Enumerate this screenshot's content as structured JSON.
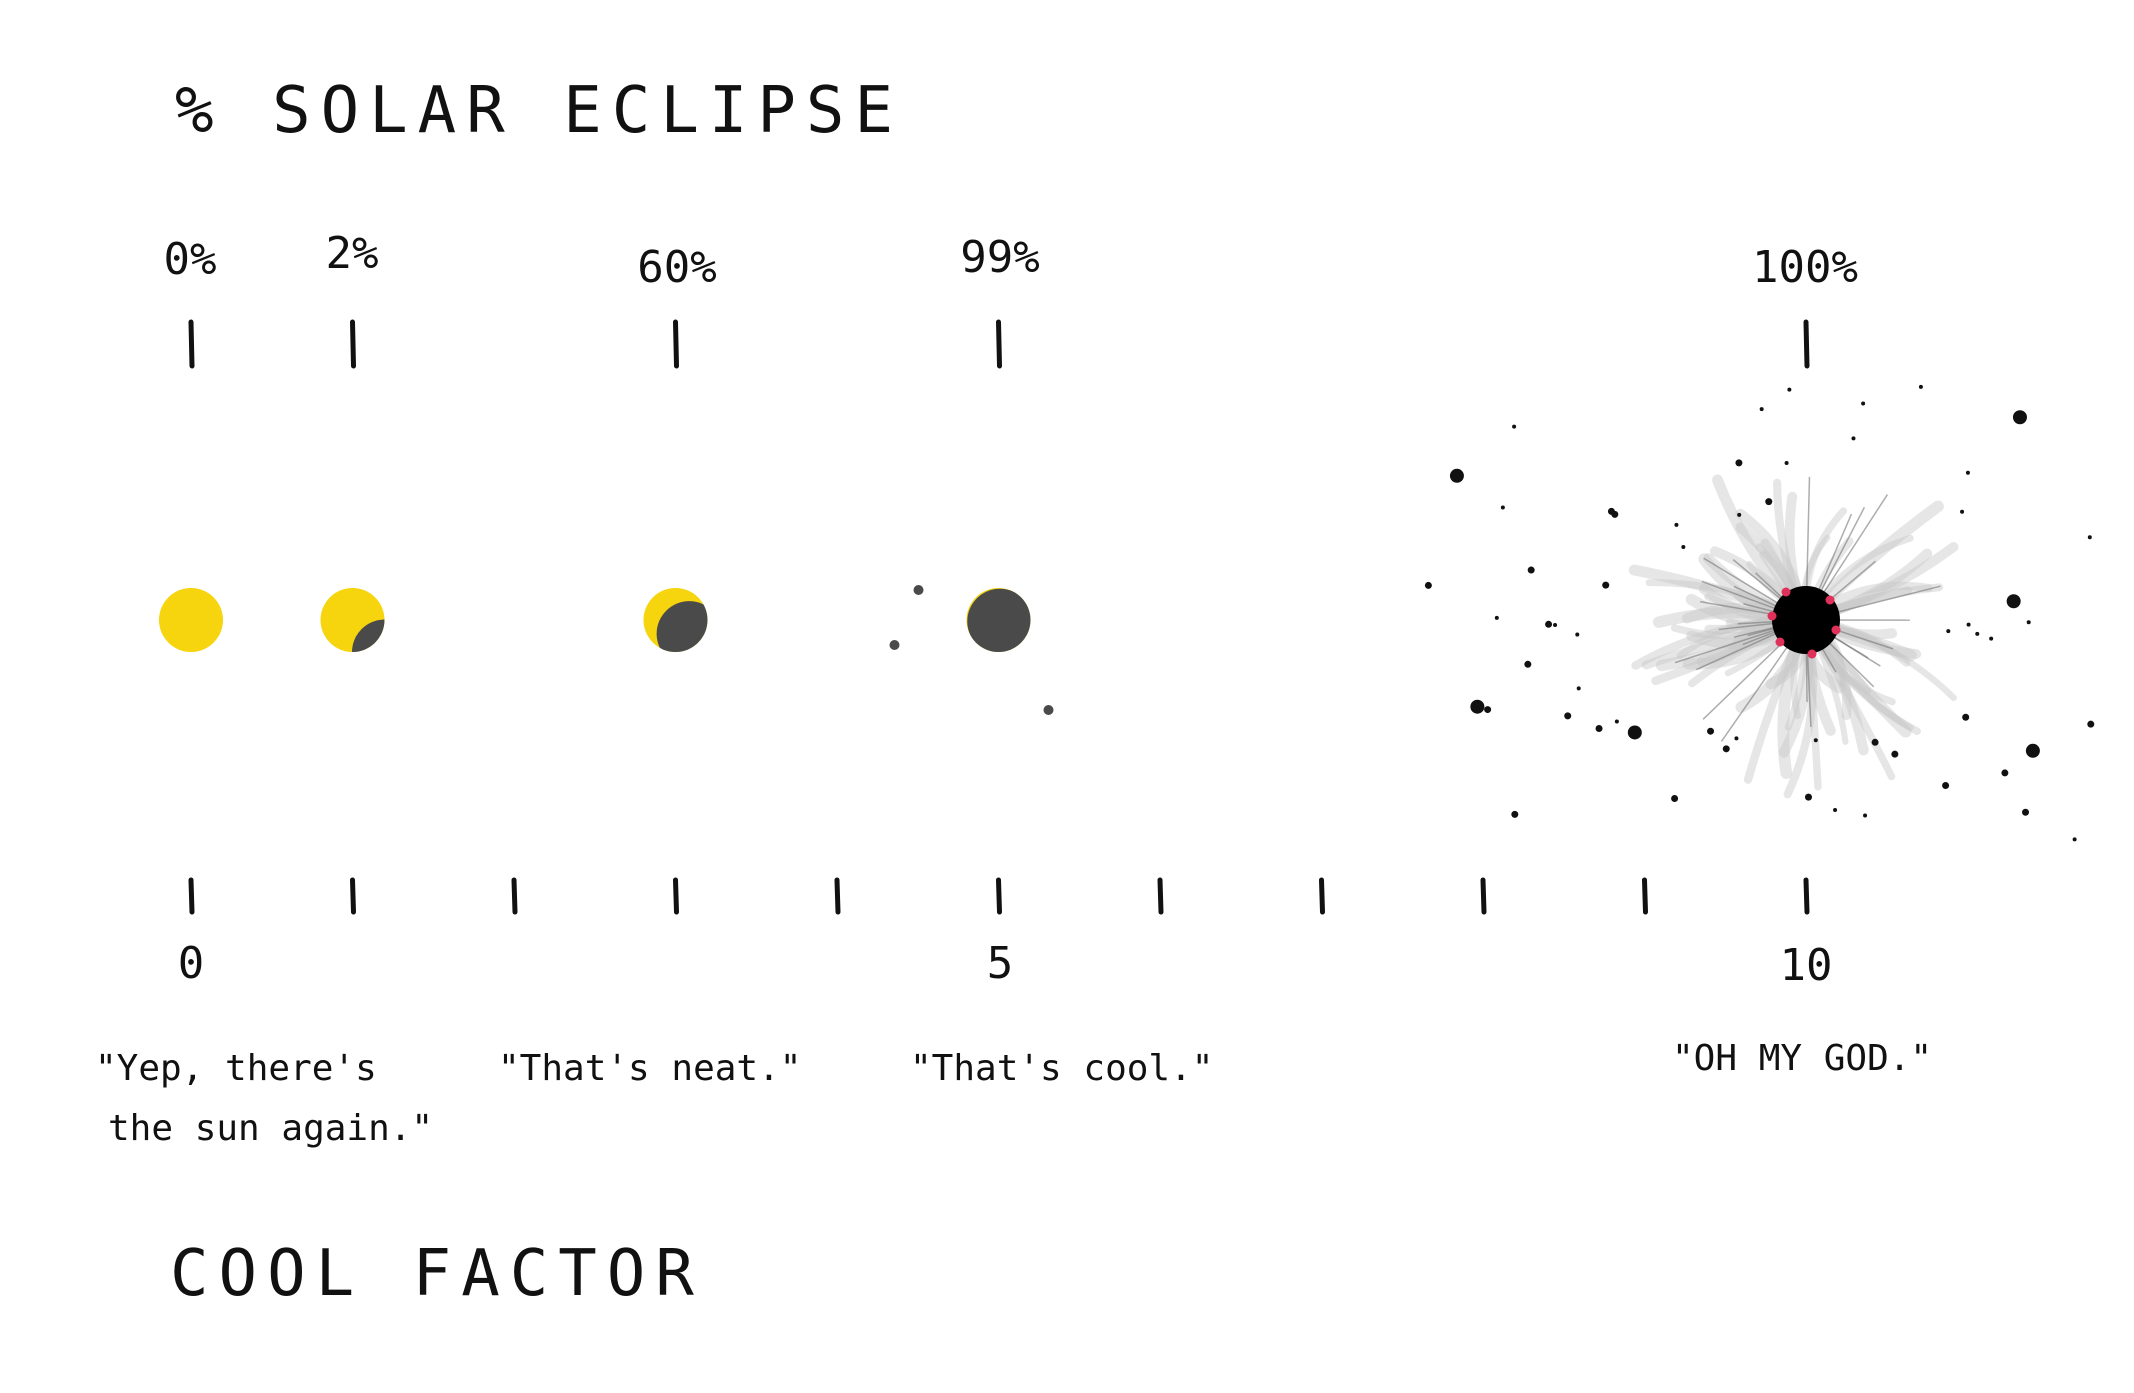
{
  "chart_data": {
    "type": "scatter",
    "title": "% SOLAR ECLIPSE",
    "xlabel": "COOL FACTOR",
    "x_tick_labels": [
      "0",
      "5",
      "10"
    ],
    "xlim": [
      0,
      10
    ],
    "x_tick_count": 11,
    "series": [
      {
        "points": [
          {
            "eclipse_label": "0%",
            "x": 0
          },
          {
            "eclipse_label": "2%",
            "x": 1
          },
          {
            "eclipse_label": "60%",
            "x": 3
          },
          {
            "eclipse_label": "99%",
            "x": 5
          },
          {
            "eclipse_label": "100%",
            "x": 10
          }
        ]
      }
    ],
    "annotations": [
      {
        "lines": [
          "\"Yep, there's",
          "the sun again.\""
        ]
      },
      {
        "lines": [
          "\"That's neat.\""
        ]
      },
      {
        "lines": [
          "\"That's cool.\""
        ]
      },
      {
        "lines": [
          "\"OH MY GOD.\""
        ]
      }
    ],
    "colors": {
      "sun": "#f6d40e",
      "moon": "#4a4a4a",
      "ink": "#111111",
      "prominence": "#e0315a",
      "corona": "#c8c8c8"
    }
  }
}
